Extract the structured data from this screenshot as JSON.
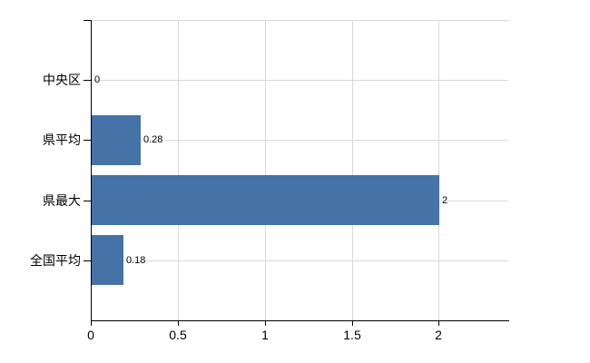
{
  "chart_data": {
    "type": "bar",
    "orientation": "horizontal",
    "title": "",
    "xlabel": "",
    "ylabel": "",
    "categories": [
      "中央区",
      "県平均",
      "県最大",
      "全国平均"
    ],
    "values": [
      0,
      0.28,
      2,
      0.18
    ],
    "value_labels": [
      "0",
      "0.28",
      "2",
      "0.18"
    ],
    "xlim": [
      0,
      2.4
    ],
    "x_ticks": [
      0,
      0.5,
      1,
      1.5,
      2
    ],
    "x_tick_labels": [
      "0",
      "0.5",
      "1",
      "1.5",
      "2"
    ],
    "grid": true,
    "legend": false,
    "bar_color": "#4572a7",
    "gridline_color": "#d9d9d9",
    "axis_color": "#000000",
    "text_color": "#000000"
  }
}
